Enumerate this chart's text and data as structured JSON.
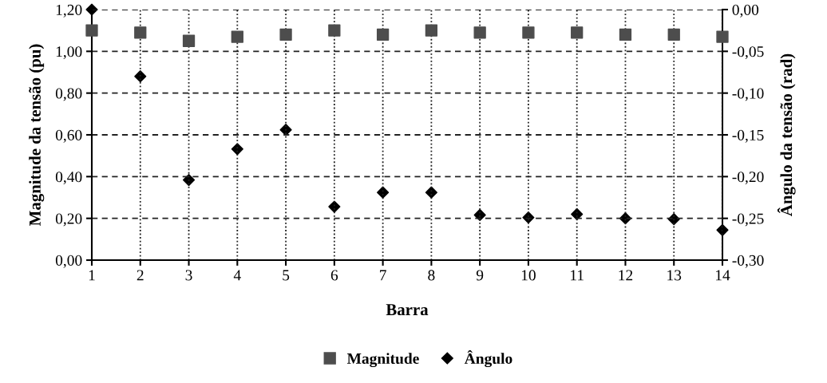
{
  "chart_data": {
    "type": "scatter",
    "xlabel": "Barra",
    "ylabel": "Magnitude da tensão (pu)",
    "y2label": "Ângulo da tensão (rad)",
    "categories": [
      "1",
      "2",
      "3",
      "4",
      "5",
      "6",
      "7",
      "8",
      "9",
      "10",
      "11",
      "12",
      "13",
      "14"
    ],
    "series": [
      {
        "name": "Magnitude",
        "color": "#4d4d4d",
        "marker": "square",
        "values": [
          1.1,
          1.09,
          1.05,
          1.07,
          1.08,
          1.1,
          1.08,
          1.1,
          1.09,
          1.09,
          1.09,
          1.08,
          1.08,
          1.07
        ]
      },
      {
        "name": "Ângulo",
        "color": "#000000",
        "marker": "diamond",
        "axis": "y2",
        "values": [
          0.0,
          -0.08,
          -0.204,
          -0.167,
          -0.144,
          -0.236,
          -0.219,
          -0.219,
          -0.246,
          -0.249,
          -0.245,
          -0.25,
          -0.251,
          -0.264
        ]
      }
    ],
    "ylim": [
      0,
      1.2
    ],
    "yticks": [
      {
        "value": 0,
        "label": "0,00"
      },
      {
        "value": 0.2,
        "label": "0,20"
      },
      {
        "value": 0.4,
        "label": "0,40"
      },
      {
        "value": 0.6,
        "label": "0,60"
      },
      {
        "value": 0.8,
        "label": "0,80"
      },
      {
        "value": 1.0,
        "label": "1,00"
      },
      {
        "value": 1.2,
        "label": "1,20"
      }
    ],
    "y2lim": [
      -0.3,
      0
    ],
    "y2ticks": [
      {
        "value": -0.3,
        "label": "-0,30"
      },
      {
        "value": -0.25,
        "label": "-0,25"
      },
      {
        "value": -0.2,
        "label": "-0,20"
      },
      {
        "value": -0.15,
        "label": "-0,15"
      },
      {
        "value": -0.1,
        "label": "-0,10"
      },
      {
        "value": -0.05,
        "label": "-0,05"
      },
      {
        "value": 0,
        "label": "0,00"
      }
    ],
    "grid": true,
    "legend": "bottom"
  }
}
